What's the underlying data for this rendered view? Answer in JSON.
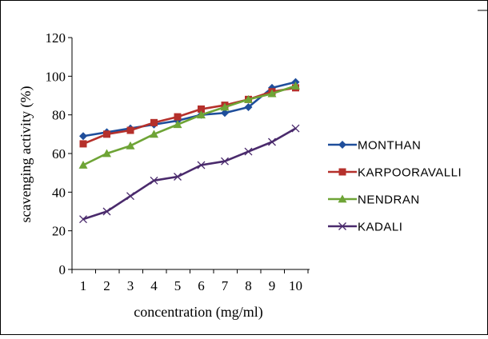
{
  "chart_data": {
    "type": "line",
    "title": "",
    "xlabel": "concentration (mg/ml)",
    "ylabel": "scavenging activity (%)",
    "categories": [
      "1",
      "2",
      "3",
      "4",
      "5",
      "6",
      "7",
      "8",
      "9",
      "10"
    ],
    "ylim": [
      0,
      120
    ],
    "yticks": [
      "0",
      "20",
      "40",
      "60",
      "80",
      "100",
      "120"
    ],
    "grid": false,
    "legend_position": "right",
    "series": [
      {
        "name": "MONTHAN",
        "color": "#1F4E9B",
        "marker": "diamond",
        "values": [
          69,
          71,
          73,
          75,
          77,
          80,
          81,
          84,
          94,
          97
        ]
      },
      {
        "name": "KARPOORAVALLI",
        "color": "#B5302B",
        "marker": "square",
        "values": [
          65,
          70,
          72,
          76,
          79,
          83,
          85,
          88,
          92,
          94
        ]
      },
      {
        "name": "NENDRAN",
        "color": "#6EA436",
        "marker": "triangle",
        "values": [
          54,
          60,
          64,
          70,
          75,
          80,
          84,
          88,
          91,
          95
        ]
      },
      {
        "name": "KADALI",
        "color": "#4A2A6C",
        "marker": "x",
        "values": [
          26,
          30,
          38,
          46,
          48,
          54,
          56,
          61,
          66,
          73
        ]
      }
    ]
  }
}
